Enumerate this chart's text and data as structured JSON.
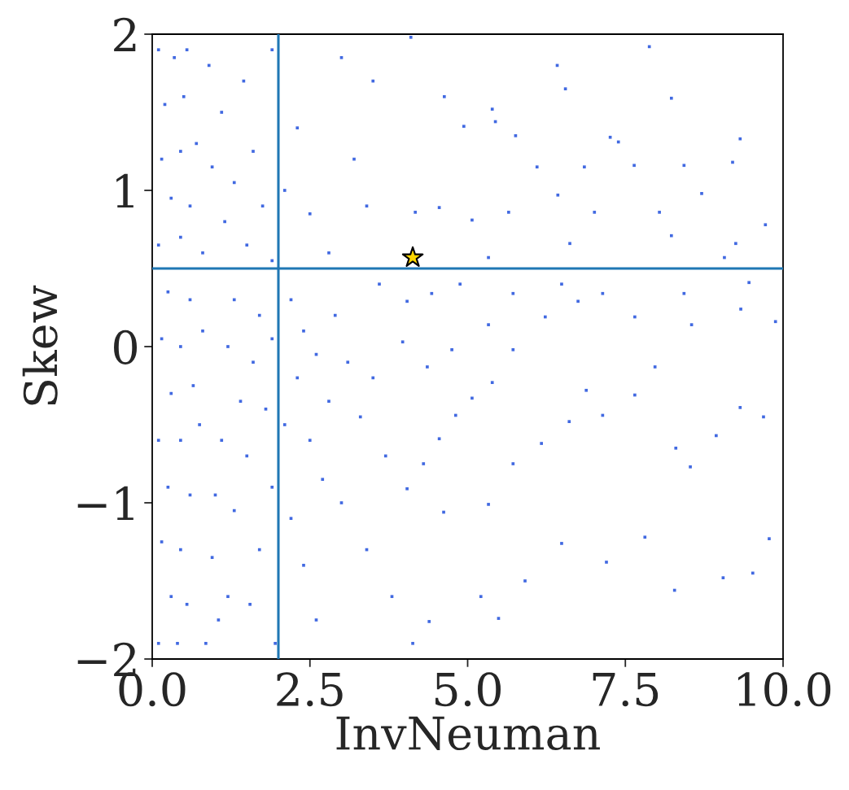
{
  "chart_data": {
    "type": "scatter",
    "xlabel": "InvNeuman",
    "ylabel": "Skew",
    "xlim": [
      0,
      10
    ],
    "ylim": [
      -2,
      2
    ],
    "xticks": [
      {
        "value": 0,
        "label": "0.0"
      },
      {
        "value": 2.5,
        "label": "2.5"
      },
      {
        "value": 5,
        "label": "5.0"
      },
      {
        "value": 7.5,
        "label": "7.5"
      },
      {
        "value": 10,
        "label": "10.0"
      }
    ],
    "yticks": [
      {
        "value": -2,
        "label": "−2"
      },
      {
        "value": -1,
        "label": "−1"
      },
      0,
      1,
      2
    ],
    "ref_lines": [
      {
        "axis": "x",
        "value": 2,
        "color": "#1f77b4"
      },
      {
        "axis": "y",
        "value": 0.5,
        "color": "#1f77b4"
      }
    ],
    "series": [
      {
        "marker": "square",
        "color": "#4169e1",
        "x": [
          0.1,
          0.35,
          0.55,
          0.2,
          0.5,
          0.15,
          0.45,
          0.7,
          0.3,
          0.6,
          0.1,
          0.45,
          0.8,
          0.25,
          0.6,
          0.15,
          0.45,
          0.8,
          0.3,
          0.65,
          0.1,
          0.45,
          0.75,
          0.25,
          0.6,
          0.15,
          0.45,
          0.3,
          0.55,
          0.1,
          0.4,
          0.9,
          1.1,
          0.95,
          1.3,
          1.15,
          1.5,
          1.3,
          1.7,
          1.2,
          1.6,
          1.9,
          1.4,
          1.8,
          1.1,
          1.5,
          1.0,
          1.3,
          0.95,
          1.2,
          0.85,
          1.05,
          1.6,
          1.45,
          1.75,
          1.9,
          2.2,
          2.4,
          2.3,
          2.6,
          2.1,
          2.5,
          1.9,
          2.2,
          1.7,
          1.55,
          1.95,
          1.9,
          2.3,
          2.1,
          2.5,
          2.8,
          2.9,
          3.1,
          2.8,
          3.3,
          2.7,
          3.0,
          2.4,
          2.6,
          3.2,
          3.5,
          3.4,
          3.6,
          3.5,
          3.7,
          3.4,
          3.8,
          3.0,
          4.1,
          7.88,
          6.42,
          8.23,
          9.32,
          7.26,
          9.72,
          7.64,
          8.71,
          9.25,
          9.78,
          9.52,
          9.05,
          8.28,
          7.2,
          5.49,
          4.13,
          4.39,
          5.21,
          5.91,
          6.49,
          7.81,
          8.53,
          9.69,
          9.32,
          8.94,
          8.3,
          7.65,
          7.14,
          6.61,
          6.88,
          7.97,
          8.55,
          9.33,
          9.88,
          9.46,
          8.43,
          7.65,
          7.14,
          6.75,
          6.23,
          5.72,
          5.39,
          5.07,
          4.81,
          4.55,
          4.3,
          4.04,
          4.62,
          5.33,
          5.72,
          6.17,
          5.33,
          4.75,
          4.36,
          3.97,
          4.04,
          4.43,
          4.88,
          5.72,
          6.49,
          4.17,
          4.55,
          5.07,
          5.65,
          6.1,
          6.43,
          7.01,
          8.04,
          8.23,
          9.2,
          8.43,
          6.85,
          6.55,
          5.44,
          4.94,
          4.63,
          5.39,
          5.76,
          7.39,
          9.07,
          6.62,
          5.33
        ],
        "values": [
          1.9,
          1.85,
          1.9,
          1.55,
          1.6,
          1.2,
          1.25,
          1.3,
          0.95,
          0.9,
          0.65,
          0.7,
          0.6,
          0.35,
          0.3,
          0.05,
          0.0,
          0.1,
          -0.3,
          -0.25,
          -0.6,
          -0.6,
          -0.5,
          -0.9,
          -0.95,
          -1.25,
          -1.3,
          -1.6,
          -1.65,
          -1.9,
          -1.9,
          1.8,
          1.5,
          1.15,
          1.05,
          0.8,
          0.65,
          0.3,
          0.2,
          0.0,
          -0.1,
          0.05,
          -0.35,
          -0.4,
          -0.6,
          -0.7,
          -0.95,
          -1.05,
          -1.35,
          -1.6,
          -1.9,
          -1.75,
          1.25,
          1.7,
          0.9,
          0.55,
          0.3,
          0.1,
          -0.2,
          -0.05,
          -0.5,
          -0.6,
          -0.9,
          -1.1,
          -1.3,
          -1.65,
          -1.9,
          1.9,
          1.4,
          1.0,
          0.85,
          0.6,
          0.2,
          -0.1,
          -0.35,
          -0.45,
          -0.85,
          -1.0,
          -1.4,
          -1.75,
          1.2,
          1.7,
          0.9,
          0.4,
          -0.2,
          -0.7,
          -1.3,
          -1.6,
          1.85,
          1.98,
          1.92,
          1.8,
          1.59,
          1.33,
          1.34,
          0.78,
          1.16,
          0.98,
          0.66,
          -1.23,
          -1.45,
          -1.48,
          -1.56,
          -1.38,
          -1.74,
          -1.9,
          -1.76,
          -1.6,
          -1.5,
          -1.26,
          -1.22,
          -0.77,
          -0.45,
          -0.39,
          -0.57,
          -0.65,
          -0.31,
          -0.44,
          -0.48,
          -0.28,
          -0.13,
          0.14,
          0.24,
          0.16,
          0.41,
          0.34,
          0.19,
          0.34,
          0.29,
          0.19,
          -0.02,
          -0.23,
          -0.33,
          -0.44,
          -0.59,
          -0.75,
          -0.91,
          -1.06,
          -1.01,
          -0.75,
          -0.62,
          0.14,
          -0.02,
          -0.13,
          0.03,
          0.29,
          0.34,
          0.4,
          0.34,
          0.4,
          0.86,
          0.89,
          0.81,
          0.86,
          1.15,
          0.97,
          0.86,
          0.86,
          0.71,
          1.18,
          1.16,
          1.15,
          1.65,
          1.44,
          1.41,
          1.6,
          1.52,
          1.35,
          1.31,
          0.57,
          0.66,
          0.57
        ]
      },
      {
        "marker": "star",
        "color": "#ffd700",
        "x": [
          4.13
        ],
        "values": [
          0.57
        ]
      }
    ]
  }
}
